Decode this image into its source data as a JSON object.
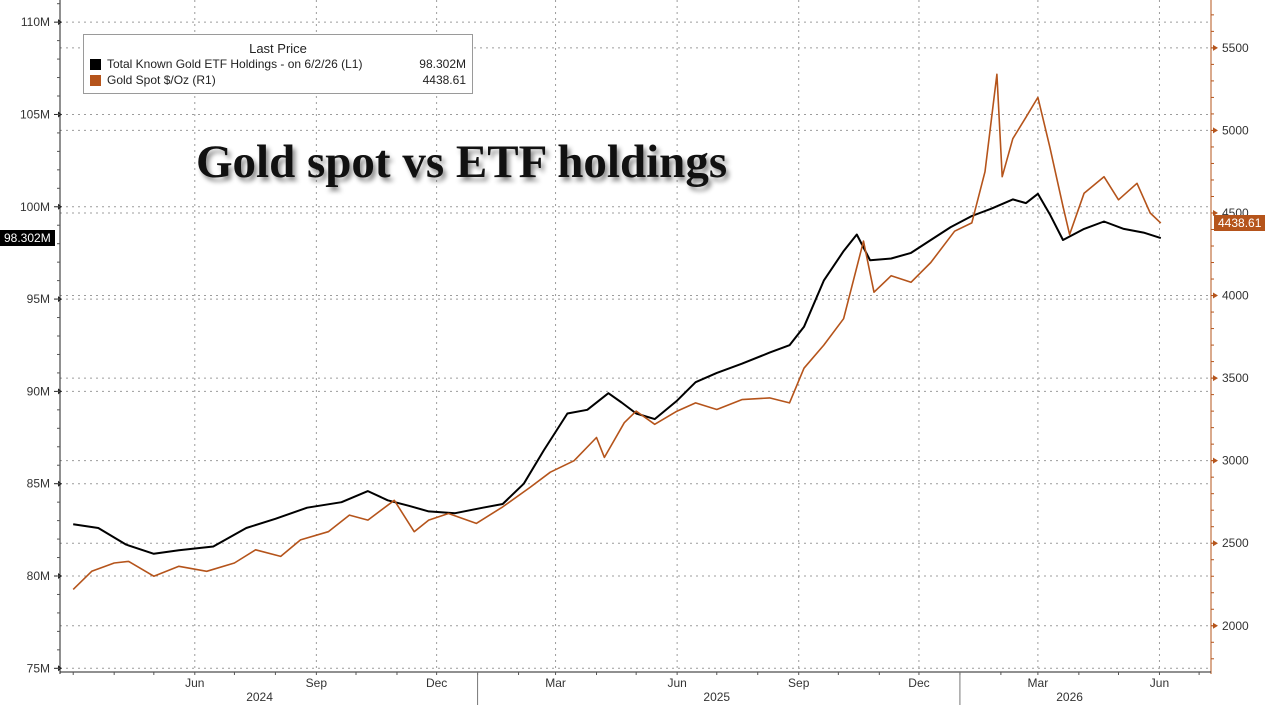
{
  "chart_data": {
    "type": "line",
    "title": "Gold spot vs ETF holdings",
    "legend": {
      "header": "Last Price",
      "placement": "top-left",
      "entries": [
        {
          "label": "Total Known Gold ETF Holdings -  on 6/2/26  (L1)",
          "value": "98.302M",
          "color": "#000000"
        },
        {
          "label": "Gold Spot $/Oz  (R1)",
          "value": "4438.61",
          "color": "#b5541b"
        }
      ]
    },
    "x_axis": {
      "month_ticks": [
        "Jun",
        "Sep",
        "Dec",
        "Mar",
        "Jun",
        "Sep",
        "Dec",
        "Mar",
        "Jun"
      ],
      "year_labels": [
        "2024",
        "2025",
        "2026"
      ]
    },
    "y_left": {
      "ticks": [
        "75M",
        "80M",
        "85M",
        "90M",
        "95M",
        "100M",
        "105M",
        "110M"
      ],
      "ylim": [
        74.8,
        111.2
      ]
    },
    "y_right": {
      "ticks": [
        "2000",
        "2500",
        "3000",
        "3500",
        "4000",
        "4500",
        "5000",
        "5500"
      ],
      "ylim": [
        1720,
        5790
      ]
    },
    "grid": true,
    "last_values": {
      "left": "98.302M",
      "right": "4438.61"
    },
    "series": [
      {
        "name": "Total Known Gold ETF Holdings -  on 6/2/26  (L1)",
        "axis": "left",
        "color": "#000000",
        "x": [
          "2024-03-01",
          "2024-03-20",
          "2024-04-10",
          "2024-05-01",
          "2024-05-20",
          "2024-06-15",
          "2024-07-10",
          "2024-08-01",
          "2024-08-25",
          "2024-09-20",
          "2024-10-10",
          "2024-10-25",
          "2024-11-10",
          "2024-11-25",
          "2024-12-15",
          "2025-01-05",
          "2025-01-20",
          "2025-02-05",
          "2025-02-20",
          "2025-03-10",
          "2025-03-25",
          "2025-04-10",
          "2025-04-20",
          "2025-05-01",
          "2025-05-15",
          "2025-06-01",
          "2025-06-15",
          "2025-07-01",
          "2025-07-20",
          "2025-08-10",
          "2025-08-25",
          "2025-09-05",
          "2025-09-20",
          "2025-10-05",
          "2025-10-15",
          "2025-10-25",
          "2025-11-10",
          "2025-11-25",
          "2025-12-10",
          "2025-12-25",
          "2026-01-10",
          "2026-01-25",
          "2026-02-10",
          "2026-02-20",
          "2026-03-01",
          "2026-03-10",
          "2026-03-20",
          "2026-04-05",
          "2026-04-20",
          "2026-05-05",
          "2026-05-20",
          "2026-06-02"
        ],
        "values": [
          82.8,
          82.6,
          81.7,
          81.2,
          81.4,
          81.6,
          82.6,
          83.1,
          83.7,
          84.0,
          84.6,
          84.1,
          83.8,
          83.5,
          83.4,
          83.7,
          83.9,
          85.0,
          86.8,
          88.8,
          89.0,
          89.9,
          89.4,
          88.8,
          88.5,
          89.5,
          90.5,
          91.0,
          91.5,
          92.1,
          92.5,
          93.5,
          96.0,
          97.6,
          98.5,
          97.1,
          97.2,
          97.5,
          98.2,
          98.9,
          99.5,
          99.9,
          100.4,
          100.2,
          100.7,
          99.6,
          98.2,
          98.8,
          99.2,
          98.8,
          98.6,
          98.302
        ]
      },
      {
        "name": "Gold Spot $/Oz  (R1)",
        "axis": "right",
        "color": "#b5541b",
        "x": [
          "2024-03-01",
          "2024-03-15",
          "2024-04-01",
          "2024-04-12",
          "2024-05-01",
          "2024-05-20",
          "2024-06-10",
          "2024-07-01",
          "2024-07-17",
          "2024-08-05",
          "2024-08-20",
          "2024-09-10",
          "2024-09-26",
          "2024-10-10",
          "2024-10-30",
          "2024-11-14",
          "2024-11-25",
          "2024-12-10",
          "2024-12-31",
          "2025-01-20",
          "2025-02-10",
          "2025-02-25",
          "2025-03-15",
          "2025-04-01",
          "2025-04-07",
          "2025-04-22",
          "2025-05-01",
          "2025-05-15",
          "2025-06-01",
          "2025-06-15",
          "2025-07-01",
          "2025-07-20",
          "2025-08-10",
          "2025-08-25",
          "2025-09-05",
          "2025-09-20",
          "2025-10-05",
          "2025-10-20",
          "2025-10-28",
          "2025-11-10",
          "2025-11-25",
          "2025-12-10",
          "2025-12-28",
          "2026-01-10",
          "2026-01-20",
          "2026-01-29",
          "2026-02-02",
          "2026-02-10",
          "2026-02-20",
          "2026-03-01",
          "2026-03-10",
          "2026-03-20",
          "2026-03-25",
          "2026-04-05",
          "2026-04-20",
          "2026-05-01",
          "2026-05-15",
          "2026-05-25",
          "2026-06-02"
        ],
        "values": [
          2220,
          2330,
          2380,
          2390,
          2300,
          2360,
          2330,
          2380,
          2460,
          2420,
          2520,
          2570,
          2670,
          2640,
          2760,
          2570,
          2640,
          2680,
          2620,
          2720,
          2840,
          2930,
          3000,
          3140,
          3020,
          3230,
          3300,
          3220,
          3300,
          3350,
          3310,
          3370,
          3380,
          3350,
          3560,
          3700,
          3860,
          4330,
          4020,
          4120,
          4080,
          4200,
          4390,
          4440,
          4750,
          5340,
          4720,
          4950,
          5080,
          5200,
          4900,
          4540,
          4370,
          4620,
          4720,
          4580,
          4680,
          4500,
          4438.61
        ]
      }
    ]
  }
}
